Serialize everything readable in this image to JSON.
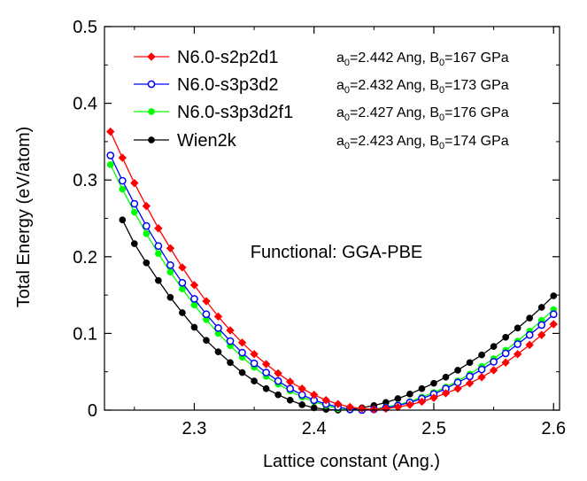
{
  "chart_data": {
    "type": "line",
    "xlabel": "Lattice constant (Ang.)",
    "ylabel": "Total Energy (eV/atom)",
    "xlim": [
      2.225,
      2.605
    ],
    "ylim": [
      0,
      0.5
    ],
    "xticks": [
      2.3,
      2.4,
      2.5,
      2.6
    ],
    "xtick_labels": [
      "2.3",
      "2.4",
      "2.5",
      "2.6"
    ],
    "yticks": [
      0,
      0.1,
      0.2,
      0.3,
      0.4,
      0.5
    ],
    "ytick_labels": [
      "0",
      "0.1",
      "0.2",
      "0.3",
      "0.4",
      "0.5"
    ],
    "legend_position": "top-left",
    "annotation": "Functional: GGA-PBE",
    "series": [
      {
        "name": "N6.0-s2p2d1",
        "color": "#ff0000",
        "marker": "filled-diamond",
        "x": [
          2.23,
          2.24,
          2.25,
          2.26,
          2.27,
          2.28,
          2.29,
          2.3,
          2.31,
          2.32,
          2.33,
          2.34,
          2.35,
          2.36,
          2.37,
          2.38,
          2.39,
          2.4,
          2.41,
          2.42,
          2.43,
          2.44,
          2.45,
          2.46,
          2.47,
          2.48,
          2.49,
          2.5,
          2.51,
          2.52,
          2.53,
          2.54,
          2.55,
          2.56,
          2.57,
          2.58,
          2.59,
          2.6
        ],
        "y": [
          0.363,
          0.329,
          0.296,
          0.266,
          0.237,
          0.211,
          0.186,
          0.163,
          0.142,
          0.122,
          0.104,
          0.088,
          0.073,
          0.06,
          0.048,
          0.037,
          0.028,
          0.02,
          0.013,
          0.008,
          0.004,
          0.002,
          0.001,
          0.002,
          0.004,
          0.007,
          0.011,
          0.016,
          0.022,
          0.028,
          0.035,
          0.043,
          0.052,
          0.062,
          0.073,
          0.085,
          0.098,
          0.112
        ]
      },
      {
        "name": "N6.0-s3p3d2",
        "color": "#0000ff",
        "marker": "open-circle",
        "x": [
          2.23,
          2.24,
          2.25,
          2.26,
          2.27,
          2.28,
          2.29,
          2.3,
          2.31,
          2.32,
          2.33,
          2.34,
          2.35,
          2.36,
          2.37,
          2.38,
          2.39,
          2.4,
          2.41,
          2.42,
          2.43,
          2.44,
          2.45,
          2.46,
          2.47,
          2.48,
          2.49,
          2.5,
          2.51,
          2.52,
          2.53,
          2.54,
          2.55,
          2.56,
          2.57,
          2.58,
          2.59,
          2.6
        ],
        "y": [
          0.332,
          0.299,
          0.269,
          0.24,
          0.214,
          0.189,
          0.166,
          0.145,
          0.125,
          0.107,
          0.09,
          0.075,
          0.061,
          0.049,
          0.038,
          0.028,
          0.02,
          0.013,
          0.008,
          0.004,
          0.001,
          0.0,
          0.001,
          0.003,
          0.006,
          0.01,
          0.015,
          0.021,
          0.028,
          0.036,
          0.044,
          0.053,
          0.063,
          0.074,
          0.086,
          0.098,
          0.111,
          0.125
        ]
      },
      {
        "name": "N6.0-s3p3d2f1",
        "color": "#00ff00",
        "marker": "filled-circle",
        "x": [
          2.23,
          2.24,
          2.25,
          2.26,
          2.27,
          2.28,
          2.29,
          2.3,
          2.31,
          2.32,
          2.33,
          2.34,
          2.35,
          2.36,
          2.37,
          2.38,
          2.39,
          2.4,
          2.41,
          2.42,
          2.43,
          2.44,
          2.45,
          2.46,
          2.47,
          2.48,
          2.49,
          2.5,
          2.51,
          2.52,
          2.53,
          2.54,
          2.55,
          2.56,
          2.57,
          2.58,
          2.59,
          2.6
        ],
        "y": [
          0.32,
          0.288,
          0.258,
          0.23,
          0.204,
          0.18,
          0.158,
          0.137,
          0.118,
          0.1,
          0.084,
          0.069,
          0.056,
          0.044,
          0.034,
          0.025,
          0.017,
          0.011,
          0.006,
          0.002,
          0.0,
          0.0,
          0.001,
          0.004,
          0.007,
          0.011,
          0.017,
          0.023,
          0.03,
          0.038,
          0.047,
          0.057,
          0.067,
          0.078,
          0.09,
          0.103,
          0.117,
          0.131
        ]
      },
      {
        "name": "Wien2k",
        "color": "#000000",
        "marker": "filled-circle",
        "x": [
          2.24,
          2.25,
          2.26,
          2.27,
          2.28,
          2.29,
          2.3,
          2.31,
          2.32,
          2.33,
          2.34,
          2.35,
          2.36,
          2.37,
          2.38,
          2.39,
          2.4,
          2.41,
          2.42,
          2.43,
          2.44,
          2.45,
          2.46,
          2.47,
          2.48,
          2.49,
          2.5,
          2.51,
          2.52,
          2.53,
          2.54,
          2.55,
          2.56,
          2.57,
          2.58,
          2.59,
          2.6
        ],
        "y": [
          0.248,
          0.217,
          0.192,
          0.169,
          0.147,
          0.127,
          0.108,
          0.091,
          0.076,
          0.062,
          0.049,
          0.038,
          0.028,
          0.02,
          0.013,
          0.007,
          0.003,
          0.001,
          0.0,
          0.001,
          0.003,
          0.006,
          0.01,
          0.015,
          0.021,
          0.028,
          0.035,
          0.043,
          0.052,
          0.062,
          0.072,
          0.083,
          0.095,
          0.107,
          0.12,
          0.134,
          0.149
        ]
      }
    ],
    "legend": [
      {
        "label": "N6.0-s2p2d1",
        "annotation": {
          "a_prefix": "a",
          "a_sub": "0",
          "a_val": "=2.442 Ang, B",
          "b_sub": "0",
          "b_val": "=167 GPa"
        }
      },
      {
        "label": "N6.0-s3p3d2",
        "annotation": {
          "a_prefix": "a",
          "a_sub": "0",
          "a_val": "=2.432 Ang, B",
          "b_sub": "0",
          "b_val": "=173 GPa"
        }
      },
      {
        "label": "N6.0-s3p3d2f1",
        "annotation": {
          "a_prefix": "a",
          "a_sub": "0",
          "a_val": "=2.427 Ang, B",
          "b_sub": "0",
          "b_val": "=176 GPa"
        }
      },
      {
        "label": "Wien2k",
        "annotation": {
          "a_prefix": "a",
          "a_sub": "0",
          "a_val": "=2.423 Ang, B",
          "b_sub": "0",
          "b_val": "=174 GPa"
        }
      }
    ]
  }
}
